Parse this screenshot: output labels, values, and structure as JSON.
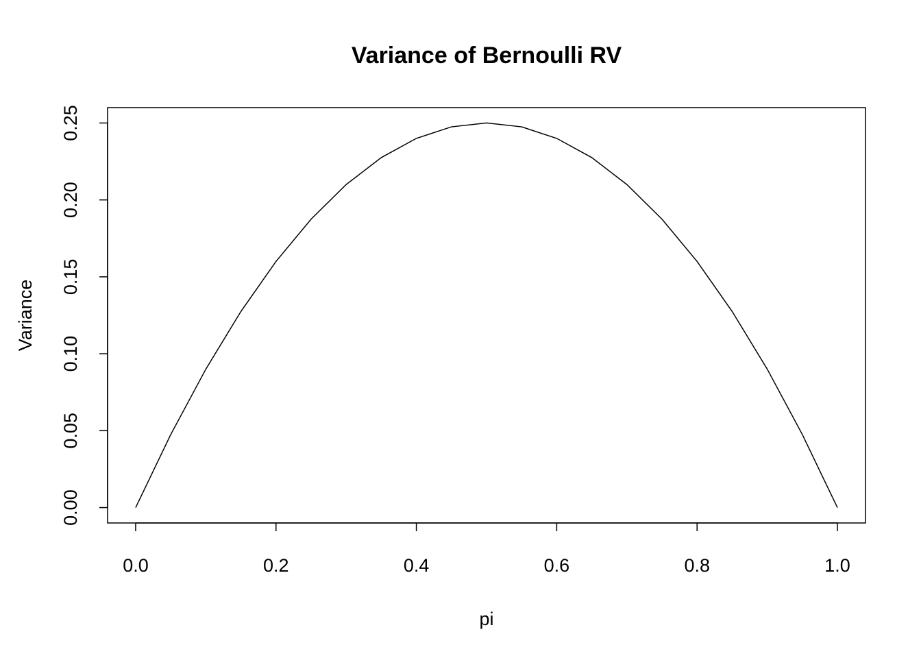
{
  "chart_data": {
    "type": "line",
    "title": "Variance of Bernoulli RV",
    "xlabel": "pi",
    "ylabel": "Variance",
    "x": [
      0,
      0.05,
      0.1,
      0.15,
      0.2,
      0.25,
      0.3,
      0.35,
      0.4,
      0.45,
      0.5,
      0.55,
      0.6,
      0.65,
      0.7,
      0.75,
      0.8,
      0.85,
      0.9,
      0.95,
      1
    ],
    "values": [
      0,
      0.0475,
      0.09,
      0.1275,
      0.16,
      0.1875,
      0.21,
      0.2275,
      0.24,
      0.2475,
      0.25,
      0.2475,
      0.24,
      0.2275,
      0.21,
      0.1875,
      0.16,
      0.1275,
      0.09,
      0.0475,
      0
    ],
    "color": "#000000",
    "xlim": [
      -0.04,
      1.04
    ],
    "xticks": [
      {
        "value": 0,
        "label": "0.0"
      },
      0.2,
      0.4,
      0.6,
      0.8,
      {
        "value": 1,
        "label": "1.0"
      }
    ],
    "ylim": [
      -0.01,
      0.26
    ],
    "yticks": [
      {
        "value": 0,
        "label": "0.00"
      },
      0.05,
      {
        "value": 0.1,
        "label": "0.10"
      },
      0.15,
      {
        "value": 0.2,
        "label": "0.20"
      },
      0.25
    ]
  }
}
